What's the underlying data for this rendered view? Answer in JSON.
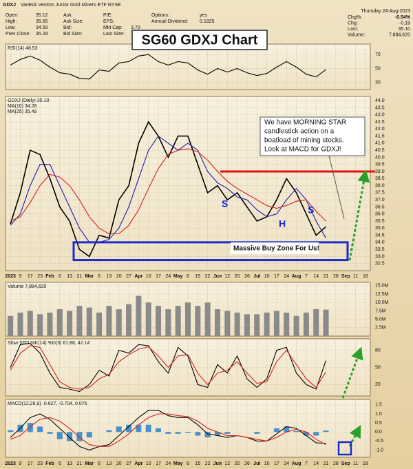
{
  "header": {
    "ticker": "GDXJ",
    "name": "VanEck Vectors Junior Gold Miners ETF NYSE",
    "columns": [
      [
        {
          "label": "Open:",
          "value": "35.12"
        },
        {
          "label": "High:",
          "value": "35.65"
        },
        {
          "label": "Low:",
          "value": "34.59"
        },
        {
          "label": "Prev Close:",
          "value": "35.29"
        }
      ],
      [
        {
          "label": "Ask:"
        },
        {
          "label": "Ask Size:"
        },
        {
          "label": "Bid:"
        },
        {
          "label": "Bid Size:"
        }
      ],
      [
        {
          "label": "P/E:"
        },
        {
          "label": "EPS:"
        },
        {
          "label": "Mkt Cap:",
          "value": "3.70"
        },
        {
          "label": "Last Size:"
        }
      ],
      [
        {
          "label": "Options:",
          "value": "yes"
        },
        {
          "label": "Annual Dividend:",
          "value": "0.1825"
        }
      ]
    ],
    "date": "Thursday 24-Aug-2023",
    "right": [
      {
        "label": "Chg%:",
        "value": "-0.54%"
      },
      {
        "label": "Chg:",
        "value": "-0.19"
      },
      {
        "label": "Last:",
        "value": "35.10"
      },
      {
        "label": "Volume:",
        "value": "7,884,620"
      }
    ]
  },
  "title": "SG60 GDXJ Chart",
  "chart_data": [
    {
      "type": "line",
      "label": "RSI(14) 48.53",
      "ylim": [
        20,
        85
      ],
      "yticks": [
        30,
        50,
        70
      ],
      "grid": true,
      "series": [
        {
          "color": "#000000",
          "values": [
            55,
            63,
            68,
            62,
            52,
            44,
            42,
            36,
            35,
            48,
            46,
            58,
            60,
            68,
            70,
            60,
            55,
            60,
            58,
            48,
            42,
            50,
            45,
            50,
            44,
            40,
            43,
            52,
            60,
            52,
            42,
            38,
            48.5,
            null,
            null,
            null,
            null
          ]
        }
      ]
    },
    {
      "type": "line",
      "ylim": [
        32.0,
        44.3
      ],
      "yticks": [
        32.5,
        {
          "value": 33,
          "label": "33.0"
        },
        33.5,
        {
          "value": 34,
          "label": "34.0"
        },
        34.5,
        {
          "value": 35,
          "label": "35.0"
        },
        35.5,
        {
          "value": 36,
          "label": "36.0"
        },
        36.5,
        {
          "value": 37,
          "label": "37.0"
        },
        37.5,
        {
          "value": 38,
          "label": "38.0"
        },
        38.5,
        {
          "value": 39,
          "label": "39.0"
        },
        39.5,
        {
          "value": 40,
          "label": "40.0"
        },
        40.5,
        {
          "value": 41,
          "label": "41.0"
        },
        41.5,
        {
          "value": 42,
          "label": "42.0"
        },
        42.5,
        {
          "value": 43,
          "label": "43.0"
        },
        43.5,
        {
          "value": 44,
          "label": "44.0"
        }
      ],
      "grid": true,
      "categories": [
        "2023",
        "9",
        "17",
        "23",
        "Feb",
        "6",
        "13",
        "21",
        "Mar",
        "6",
        "13",
        "20",
        "27",
        "Apr",
        "10",
        "17",
        "24",
        "May",
        "8",
        "15",
        "22",
        "Jun",
        "12",
        "20",
        "26",
        "Jul",
        "10",
        "17",
        "24",
        "Aug",
        "7",
        "14",
        "21",
        "28",
        "Sep",
        "11",
        "18"
      ],
      "series": [
        {
          "name": "GDXJ (Daily) 35.10",
          "color": "#000000",
          "values": [
            35.3,
            37.5,
            40.5,
            40.2,
            38.5,
            36.5,
            35.5,
            33.5,
            33.0,
            34.5,
            34.3,
            37.0,
            38.0,
            41.0,
            42.5,
            41.5,
            40.0,
            41.5,
            41.5,
            39.5,
            37.5,
            38.0,
            37.0,
            37.5,
            36.5,
            35.5,
            35.8,
            37.0,
            38.5,
            37.5,
            36.0,
            34.5,
            35.1,
            null,
            null,
            null,
            null
          ]
        },
        {
          "name": "MA(10) 34.28",
          "color": "#1a1aa8",
          "values": [
            35.2,
            36.0,
            38.0,
            39.5,
            39.5,
            38.0,
            36.5,
            35.0,
            34.0,
            34.0,
            34.2,
            35.0,
            36.5,
            38.5,
            40.5,
            41.5,
            41.0,
            40.5,
            41.0,
            40.5,
            39.0,
            38.2,
            37.8,
            37.2,
            37.0,
            36.3,
            35.8,
            36.0,
            37.0,
            37.8,
            37.0,
            35.5,
            34.3,
            null,
            null,
            null,
            null
          ]
        },
        {
          "name": "MA(25) 35.49",
          "color": "#d42020",
          "values": [
            35.5,
            35.8,
            36.8,
            38.0,
            38.8,
            38.6,
            38.0,
            37.0,
            35.8,
            35.0,
            34.6,
            34.6,
            35.2,
            36.3,
            37.8,
            39.2,
            40.2,
            40.5,
            40.6,
            40.4,
            39.8,
            39.0,
            38.3,
            37.8,
            37.4,
            37.0,
            36.6,
            36.4,
            36.6,
            36.9,
            37.0,
            36.2,
            35.5,
            null,
            null,
            null,
            null
          ]
        }
      ],
      "resistance": 39.0,
      "buy_zone": [
        32.75,
        34.0
      ],
      "callout": [
        "We have MORNING STAR",
        "candlestick action on a",
        "boatload of mining stocks.",
        "Look at MACD for GDXJ!"
      ],
      "zone_label": "Massive Buy Zone For Us!",
      "patterns": [
        "S",
        "H",
        "S"
      ]
    },
    {
      "type": "bar",
      "label": "Volume 7,884,620",
      "ylim": [
        0,
        16000000
      ],
      "color": "#8a8a8a",
      "yticks": [
        {
          "value": 2500000,
          "label": "2.5M"
        },
        {
          "value": 5000000,
          "label": "5.0M"
        },
        {
          "value": 7500000,
          "label": "7.5M"
        },
        {
          "value": 10000000,
          "label": "10.0M"
        },
        {
          "value": 12500000,
          "label": "12.5M"
        },
        {
          "value": 15000000,
          "label": "15.0M"
        }
      ],
      "grid": true,
      "values": [
        6000000,
        7000000,
        7500000,
        6500000,
        7000000,
        8000000,
        7500000,
        9000000,
        8500000,
        7000000,
        9000000,
        8000000,
        9500000,
        12000000,
        10000000,
        9000000,
        8000000,
        9000000,
        10000000,
        9000000,
        10000000,
        8000000,
        7500000,
        7000000,
        6500000,
        6500000,
        7000000,
        7500000,
        7000000,
        6000000,
        7000000,
        8000000,
        7884620,
        null,
        null,
        null,
        null
      ]
    },
    {
      "type": "line",
      "label": "Slow STO %K(14) %D(3) 61.88, 42.14",
      "ylim": [
        0,
        100
      ],
      "yticks": [
        20,
        50,
        80
      ],
      "grid": true,
      "series": [
        {
          "color": "#000000",
          "values": [
            50,
            90,
            92,
            75,
            40,
            15,
            12,
            8,
            20,
            45,
            35,
            80,
            75,
            90,
            88,
            60,
            40,
            85,
            70,
            20,
            15,
            55,
            40,
            70,
            30,
            15,
            30,
            80,
            85,
            40,
            20,
            12,
            61.88,
            null,
            null,
            null,
            null
          ]
        },
        {
          "color": "#d42020",
          "values": [
            45,
            75,
            88,
            85,
            55,
            25,
            15,
            12,
            15,
            30,
            38,
            60,
            72,
            82,
            86,
            70,
            50,
            70,
            72,
            40,
            20,
            40,
            45,
            60,
            40,
            22,
            25,
            60,
            80,
            55,
            30,
            15,
            42.14,
            null,
            null,
            null,
            null
          ]
        }
      ]
    },
    {
      "type": "line",
      "label": "MACD(12,26,9) -0.627, -0.704, 0.076",
      "ylim": [
        -1.4,
        1.8
      ],
      "yticks": [
        {
          "value": -1,
          "label": "-1.0"
        },
        -0.5,
        {
          "value": 0,
          "label": "0.0"
        },
        0.5,
        {
          "value": 1,
          "label": "1.0"
        },
        1.5
      ],
      "grid": true,
      "categories": [
        "2023",
        "9",
        "17",
        "23",
        "Feb",
        "6",
        "13",
        "21",
        "Mar",
        "6",
        "13",
        "20",
        "27",
        "Apr",
        "10",
        "17",
        "24",
        "May",
        "8",
        "15",
        "22",
        "Jun",
        "12",
        "20",
        "26",
        "Jul",
        "10",
        "17",
        "24",
        "Aug",
        "7",
        "14",
        "21",
        "28",
        "Sep",
        "11",
        "18"
      ],
      "series": [
        {
          "color": "#4a90c8",
          "style": "bars",
          "values": [
            0.1,
            0.4,
            0.5,
            0.3,
            -0.1,
            -0.4,
            -0.5,
            -0.5,
            -0.3,
            0,
            0.1,
            0.3,
            0.4,
            0.4,
            0.4,
            0.2,
            -0.1,
            -0.1,
            -0.05,
            -0.2,
            -0.3,
            -0.2,
            -0.1,
            0,
            0,
            -0.1,
            0,
            0.2,
            0.3,
            0.05,
            -0.2,
            -0.2,
            0.076,
            null,
            null,
            null,
            null
          ]
        },
        {
          "color": "#000000",
          "values": [
            -0.3,
            0.2,
            0.8,
            1.0,
            0.7,
            0.2,
            -0.3,
            -0.8,
            -1.0,
            -0.8,
            -0.7,
            -0.2,
            0.3,
            0.8,
            1.2,
            1.2,
            0.9,
            0.8,
            0.8,
            0.4,
            -0.1,
            -0.2,
            -0.3,
            -0.2,
            -0.3,
            -0.5,
            -0.5,
            -0.1,
            0.3,
            0.2,
            -0.2,
            -0.6,
            -0.627,
            null,
            null,
            null,
            null
          ]
        },
        {
          "color": "#d42020",
          "values": [
            -0.4,
            -0.2,
            0.3,
            0.7,
            0.8,
            0.6,
            0.2,
            -0.3,
            -0.7,
            -0.8,
            -0.8,
            -0.5,
            -0.1,
            0.4,
            0.8,
            1.0,
            1.0,
            0.9,
            0.85,
            0.6,
            0.2,
            0.0,
            -0.2,
            -0.2,
            -0.3,
            -0.4,
            -0.5,
            -0.3,
            0.0,
            0.15,
            0.0,
            -0.4,
            -0.704,
            null,
            null,
            null,
            null
          ]
        }
      ]
    }
  ]
}
